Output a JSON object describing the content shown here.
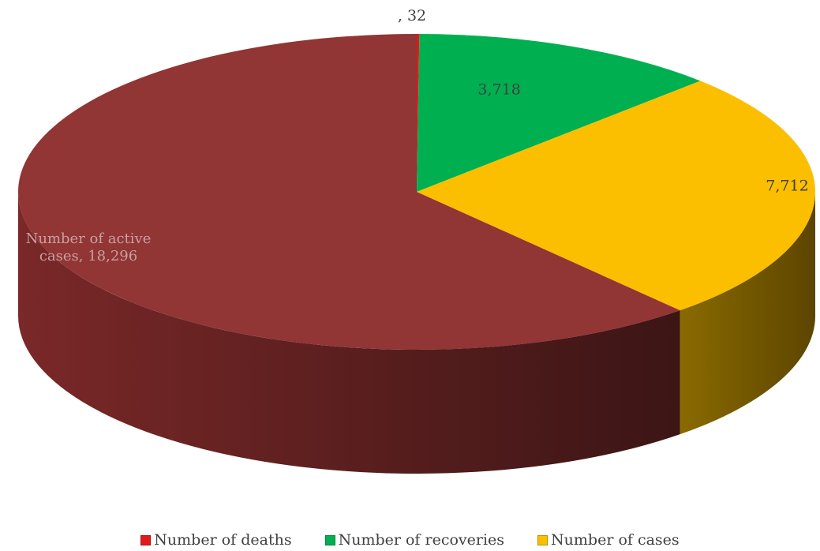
{
  "chart_data": {
    "type": "pie",
    "title": "",
    "categories": [
      "Number of deaths",
      "Number of recoveries",
      "Number of cases",
      "Number of active cases"
    ],
    "values": [
      32,
      3718,
      7712,
      18296
    ],
    "value_labels": [
      ", 32",
      "3,718",
      "7,712",
      "Number of active cases, 18,296"
    ],
    "colors": [
      "#e31a1c",
      "#00b050",
      "#fbbf00",
      "#913535"
    ],
    "legend_position": "bottom",
    "legend_entries": [
      "Number of deaths",
      "Number of recoveries",
      "Number of cases"
    ]
  }
}
